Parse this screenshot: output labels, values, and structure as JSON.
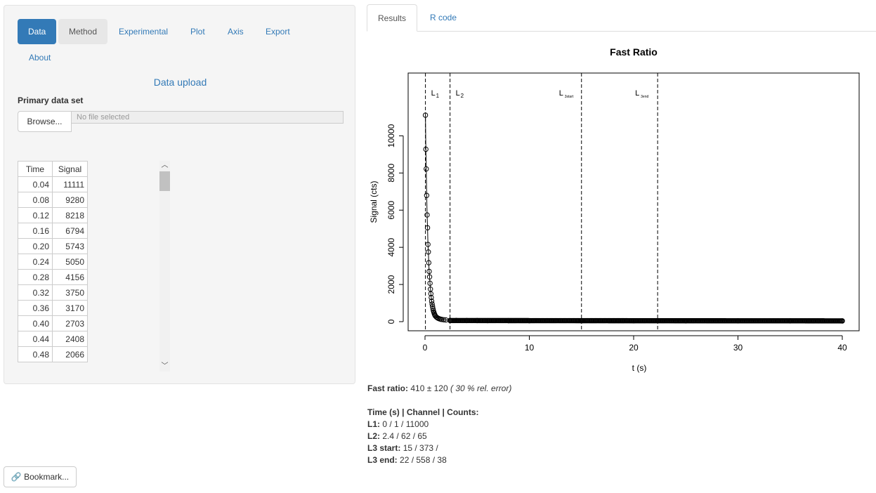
{
  "sidebar": {
    "tabs": [
      "Data",
      "Method",
      "Experimental",
      "Plot",
      "Axis",
      "Export",
      "About"
    ],
    "active_tab": "Data",
    "upload_title": "Data upload",
    "primary_label": "Primary data set",
    "browse_label": "Browse...",
    "file_placeholder": "No file selected",
    "table": {
      "headers": [
        "Time",
        "Signal"
      ],
      "rows": [
        [
          "0.04",
          "11111"
        ],
        [
          "0.08",
          "9280"
        ],
        [
          "0.12",
          "8218"
        ],
        [
          "0.16",
          "6794"
        ],
        [
          "0.20",
          "5743"
        ],
        [
          "0.24",
          "5050"
        ],
        [
          "0.28",
          "4156"
        ],
        [
          "0.32",
          "3750"
        ],
        [
          "0.36",
          "3170"
        ],
        [
          "0.40",
          "2703"
        ],
        [
          "0.44",
          "2408"
        ],
        [
          "0.48",
          "2066"
        ]
      ]
    }
  },
  "bookmark_label": "Bookmark...",
  "main_tabs": [
    "Results",
    "R code"
  ],
  "active_main_tab": "Results",
  "results": {
    "fast_ratio_label": "Fast ratio:",
    "fast_ratio_value": "410 ± 120",
    "fast_ratio_error": "( 30 % rel. error)",
    "header": "Time (s) | Channel | Counts:",
    "rows": [
      {
        "label": "L1:",
        "value": "0 / 1 / 11000"
      },
      {
        "label": "L2:",
        "value": "2.4 / 62 / 65"
      },
      {
        "label": "L3 start:",
        "value": "15 / 373 /"
      },
      {
        "label": "L3 end:",
        "value": "22 / 558 / 38"
      }
    ]
  },
  "chart_data": {
    "type": "scatter",
    "title": "Fast Ratio",
    "xlabel": "t (s)",
    "ylabel": "Signal (cts)",
    "xlim": [
      0,
      40
    ],
    "ylim": [
      0,
      11111
    ],
    "xticks": [
      0,
      10,
      20,
      30,
      40
    ],
    "yticks": [
      0,
      2000,
      4000,
      6000,
      8000,
      10000
    ],
    "series": [
      {
        "x": [
          0.04,
          0.08,
          0.12,
          0.16,
          0.2,
          0.24,
          0.28,
          0.32,
          0.36,
          0.4,
          0.44,
          0.48,
          0.52,
          0.56,
          0.6,
          0.64,
          0.68,
          0.72,
          0.76,
          0.8,
          0.84,
          0.88,
          0.92,
          0.96,
          1.0,
          1.1,
          1.2,
          1.3,
          1.4,
          1.5,
          1.6,
          1.8,
          2.0,
          2.4,
          3,
          4,
          5,
          6,
          8,
          10,
          15,
          20,
          25,
          30,
          35,
          40
        ],
        "y": [
          11111,
          9280,
          8218,
          6794,
          5743,
          5050,
          4156,
          3750,
          3170,
          2703,
          2408,
          2066,
          1750,
          1500,
          1300,
          1100,
          950,
          820,
          700,
          600,
          520,
          450,
          390,
          340,
          300,
          240,
          200,
          170,
          150,
          130,
          120,
          100,
          90,
          70,
          65,
          60,
          58,
          55,
          52,
          50,
          48,
          45,
          42,
          40,
          39,
          38
        ]
      }
    ],
    "vlines": [
      {
        "x": 0.04,
        "label": "L",
        "sub": "1"
      },
      {
        "x": 2.4,
        "label": "L",
        "sub": "2"
      },
      {
        "x": 15,
        "label": "L",
        "sub": "3start"
      },
      {
        "x": 22.3,
        "label": "L",
        "sub": "3end"
      }
    ],
    "grid": false
  }
}
